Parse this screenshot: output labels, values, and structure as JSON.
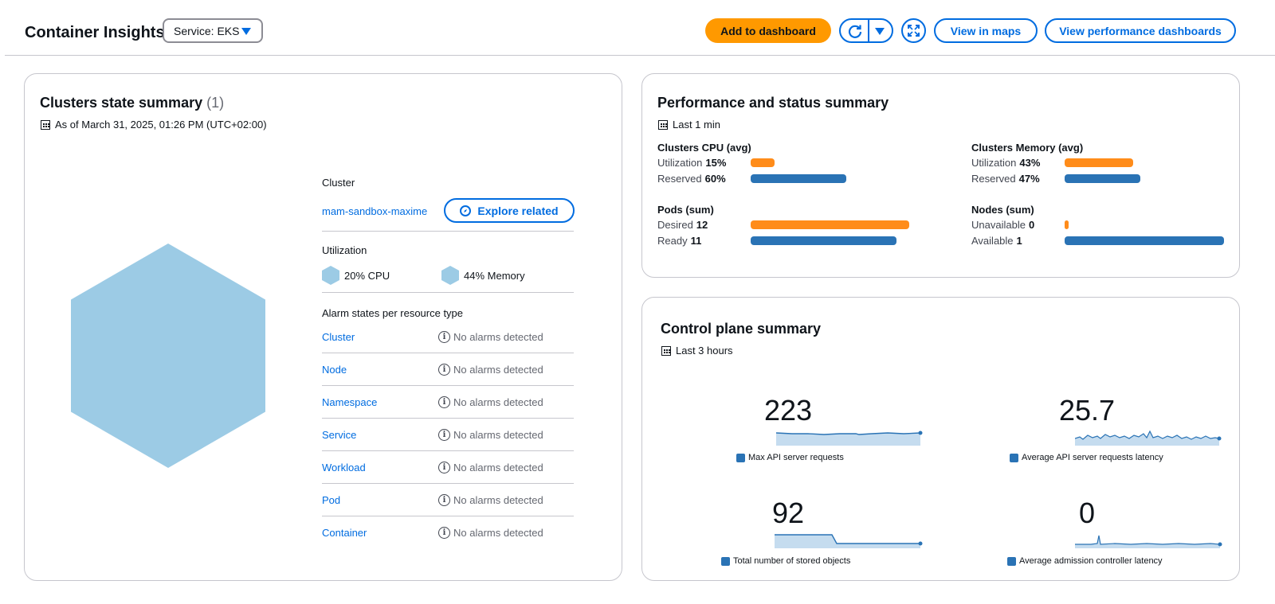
{
  "header": {
    "title": "Container Insights",
    "service_select": "Service: EKS",
    "add_to_dashboard": "Add to dashboard",
    "view_in_maps": "View in maps",
    "view_performance_dashboards": "View performance dashboards"
  },
  "clusters_summary": {
    "title": "Clusters state summary",
    "count": "(1)",
    "timestamp": "As of March 31, 2025, 01:26 PM (UTC+02:00)",
    "cluster_label": "Cluster",
    "cluster_name": "mam-sandbox-maxime",
    "explore_related": "Explore related",
    "utilization_label": "Utilization",
    "cpu": "20% CPU",
    "memory": "44% Memory",
    "alarm_label": "Alarm states per resource type",
    "alarms": [
      {
        "type": "Cluster",
        "status": "No alarms detected"
      },
      {
        "type": "Node",
        "status": "No alarms detected"
      },
      {
        "type": "Namespace",
        "status": "No alarms detected"
      },
      {
        "type": "Service",
        "status": "No alarms detected"
      },
      {
        "type": "Workload",
        "status": "No alarms detected"
      },
      {
        "type": "Pod",
        "status": "No alarms detected"
      },
      {
        "type": "Container",
        "status": "No alarms detected"
      }
    ],
    "hex_color": "#9ccbe5"
  },
  "performance": {
    "title": "Performance and status summary",
    "timestamp": "Last 1 min",
    "cpu": {
      "title": "Clusters CPU (avg)",
      "utilization_label": "Utilization",
      "utilization": "15%",
      "reserved_label": "Reserved",
      "reserved": "60%"
    },
    "memory": {
      "title": "Clusters Memory (avg)",
      "utilization_label": "Utilization",
      "utilization": "43%",
      "reserved_label": "Reserved",
      "reserved": "47%"
    },
    "pods": {
      "title": "Pods (sum)",
      "desired_label": "Desired",
      "desired": "12",
      "ready_label": "Ready",
      "ready": "11"
    },
    "nodes": {
      "title": "Nodes (sum)",
      "unavailable_label": "Unavailable",
      "unavailable": "0",
      "available_label": "Available",
      "available": "1"
    },
    "colors": {
      "orange": "#ff8c1a",
      "blue": "#2a73b5"
    }
  },
  "control_plane": {
    "title": "Control plane summary",
    "timestamp": "Last 3 hours",
    "metrics": [
      {
        "value": "223",
        "label": "Max API server requests"
      },
      {
        "value": "25.7",
        "label": "Average API server requests latency"
      },
      {
        "value": "92",
        "label": "Total number of stored objects"
      },
      {
        "value": "0",
        "label": "Average admission controller latency"
      }
    ]
  }
}
